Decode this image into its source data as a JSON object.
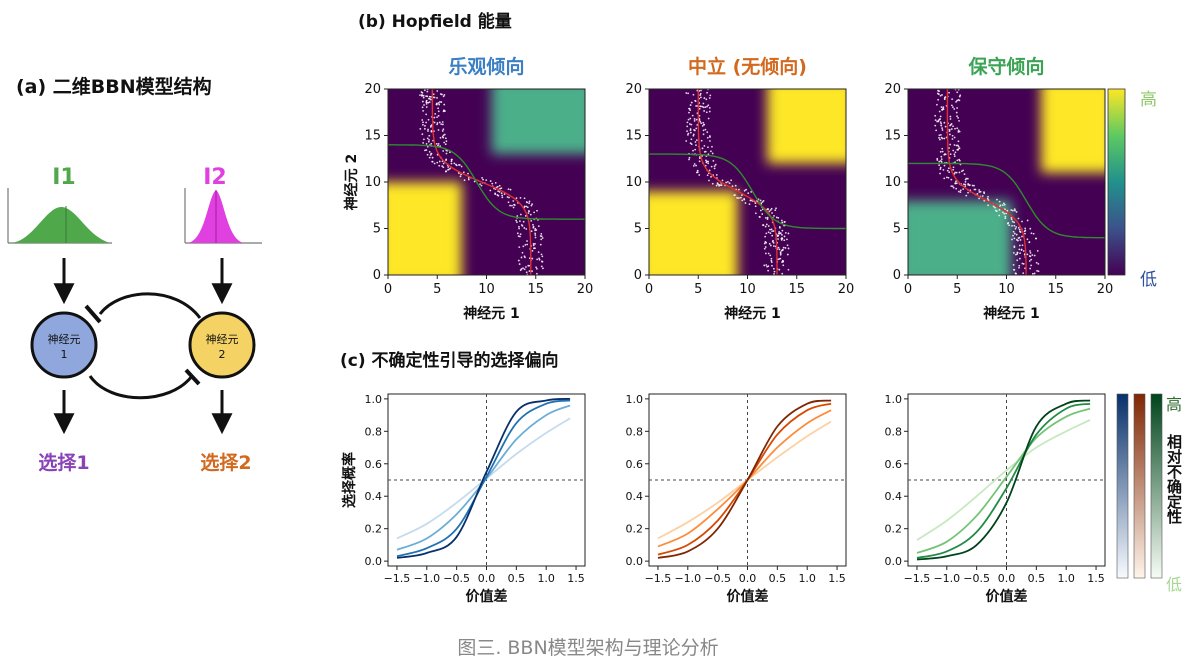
{
  "colors": {
    "blue": "#3b7fc4",
    "orange": "#d2691e",
    "green": "#3aa454",
    "purple": "#8a43b6",
    "magenta": "#e040e0",
    "i1_green": "#4fa84a",
    "neuron1": "#8fa7dc",
    "neuron2": "#f5d264",
    "viridis_low": "#440154",
    "viridis_mid": "#21918c",
    "viridis_high": "#fde725",
    "cbar_high": "#8fc96a",
    "cbar_low": "#2f4fa0"
  },
  "panel_a": {
    "title": "(a) 二维BBN模型结构",
    "input1": "I1",
    "input2": "I2",
    "neuron1_line1": "神经元",
    "neuron1_line2": "1",
    "neuron2_line1": "神经元",
    "neuron2_line2": "2",
    "choice1": "选择1",
    "choice2": "选择2"
  },
  "panel_b": {
    "title": "(b) Hopfield 能量",
    "subplots": [
      {
        "title": "乐观倾向",
        "title_color": "#3b7fc4",
        "split_x": 7.5,
        "split_y": 10,
        "low_left": 4.5,
        "high_right": 14.5,
        "left_col": "#fde725",
        "right_col": "#4caf8a"
      },
      {
        "title": "中立 (无倾向)",
        "title_color": "#d2691e",
        "split_x": 9,
        "split_y": 9,
        "low_left": 5,
        "high_right": 13,
        "left_col": "#fde725",
        "right_col": "#fde725"
      },
      {
        "title": "保守倾向",
        "title_color": "#3aa454",
        "split_x": 10.5,
        "split_y": 8,
        "low_left": 4,
        "high_right": 12,
        "left_col": "#4caf8a",
        "right_col": "#fde725"
      }
    ],
    "xlabel": "神经元 1",
    "ylabel": "神经元 2",
    "ticks": [
      "0",
      "5",
      "10",
      "15",
      "20"
    ],
    "tick_values": [
      0,
      5,
      10,
      15,
      20
    ],
    "colorbar_high": "高",
    "colorbar_low": "低"
  },
  "panel_c": {
    "title": "(c) 不确定性引导的选择偏向",
    "xlabel": "价值差",
    "ylabel": "选择概率",
    "xticks": [
      "−1.5",
      "−1.0",
      "−0.5",
      "0.0",
      "0.5",
      "1.0",
      "1.5"
    ],
    "xtick_values": [
      -1.5,
      -1.0,
      -0.5,
      0.0,
      0.5,
      1.0,
      1.5
    ],
    "yticks": [
      "0.0",
      "0.2",
      "0.4",
      "0.6",
      "0.8",
      "1.0"
    ],
    "ytick_values": [
      0.0,
      0.2,
      0.4,
      0.6,
      0.8,
      1.0
    ],
    "colorbar_high": "高",
    "colorbar_low": "低",
    "colorbar_label": "相对不确定性"
  },
  "caption": "图三. BBN模型架构与理论分析",
  "chart_data": [
    {
      "type": "line",
      "title": "",
      "xlabel": "价值差",
      "ylabel": "选择概率",
      "xlim": [
        -1.5,
        1.5
      ],
      "ylim": [
        0,
        1
      ],
      "bias": "乐观倾向",
      "x": [
        -1.5,
        -1.0,
        -0.5,
        0.0,
        0.5,
        1.0,
        1.4
      ],
      "series": [
        {
          "color": "#c6dbef",
          "values": [
            0.14,
            0.23,
            0.36,
            0.51,
            0.66,
            0.79,
            0.88
          ]
        },
        {
          "color": "#6baed6",
          "values": [
            0.07,
            0.14,
            0.29,
            0.51,
            0.75,
            0.9,
            0.96
          ]
        },
        {
          "color": "#2171b5",
          "values": [
            0.03,
            0.08,
            0.2,
            0.52,
            0.85,
            0.97,
            0.99
          ]
        },
        {
          "color": "#08306b",
          "values": [
            0.02,
            0.05,
            0.15,
            0.55,
            0.92,
            0.99,
            1.0
          ]
        }
      ]
    },
    {
      "type": "line",
      "title": "",
      "xlabel": "价值差",
      "ylabel": "",
      "xlim": [
        -1.5,
        1.5
      ],
      "ylim": [
        0,
        1
      ],
      "bias": "中立 (无倾向)",
      "x": [
        -1.5,
        -1.0,
        -0.5,
        0.0,
        0.5,
        1.0,
        1.4
      ],
      "series": [
        {
          "color": "#fdd0a2",
          "values": [
            0.14,
            0.24,
            0.36,
            0.5,
            0.64,
            0.77,
            0.86
          ]
        },
        {
          "color": "#fd8d3c",
          "values": [
            0.09,
            0.17,
            0.32,
            0.5,
            0.7,
            0.85,
            0.93
          ]
        },
        {
          "color": "#d94801",
          "values": [
            0.04,
            0.1,
            0.25,
            0.5,
            0.78,
            0.93,
            0.97
          ]
        },
        {
          "color": "#7f2704",
          "values": [
            0.02,
            0.06,
            0.2,
            0.5,
            0.83,
            0.97,
            0.99
          ]
        }
      ]
    },
    {
      "type": "line",
      "title": "",
      "xlabel": "价值差",
      "ylabel": "",
      "xlim": [
        -1.5,
        1.5
      ],
      "ylim": [
        0,
        1
      ],
      "bias": "保守倾向",
      "x": [
        -1.5,
        -1.0,
        -0.5,
        0.0,
        0.5,
        1.0,
        1.4
      ],
      "series": [
        {
          "color": "#c7e9c0",
          "values": [
            0.13,
            0.25,
            0.4,
            0.56,
            0.7,
            0.8,
            0.87
          ]
        },
        {
          "color": "#74c476",
          "values": [
            0.05,
            0.12,
            0.28,
            0.52,
            0.76,
            0.89,
            0.94
          ]
        },
        {
          "color": "#238b45",
          "values": [
            0.02,
            0.06,
            0.18,
            0.45,
            0.78,
            0.94,
            0.97
          ]
        },
        {
          "color": "#00441b",
          "values": [
            0.01,
            0.03,
            0.1,
            0.36,
            0.83,
            0.97,
            0.99
          ]
        }
      ]
    }
  ]
}
